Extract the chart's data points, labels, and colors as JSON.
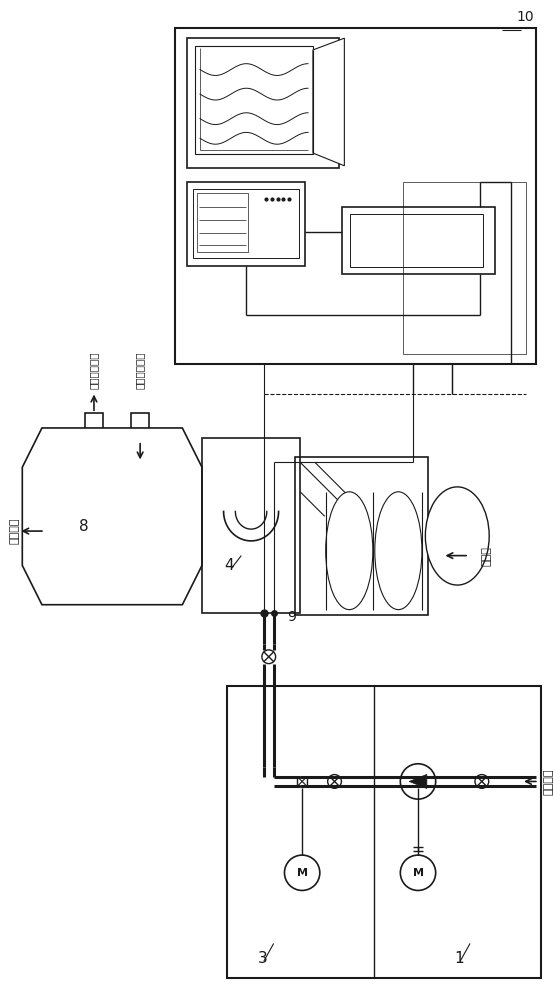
{
  "bg": "#ffffff",
  "lc": "#1a1a1a",
  "lw": 1.2,
  "figsize": [
    5.53,
    10.0
  ],
  "dpi": 100,
  "t_flue_out": "烟气出口",
  "t_pre_out": "预热介质出口",
  "t_pre_in": "预热介质入口",
  "t_combust": "燃烧气",
  "t_cold": "冷介质源",
  "t8": "8",
  "t4": "4",
  "t9": "9",
  "t3": "3",
  "t1": "1",
  "t10": "10",
  "tM": "M"
}
